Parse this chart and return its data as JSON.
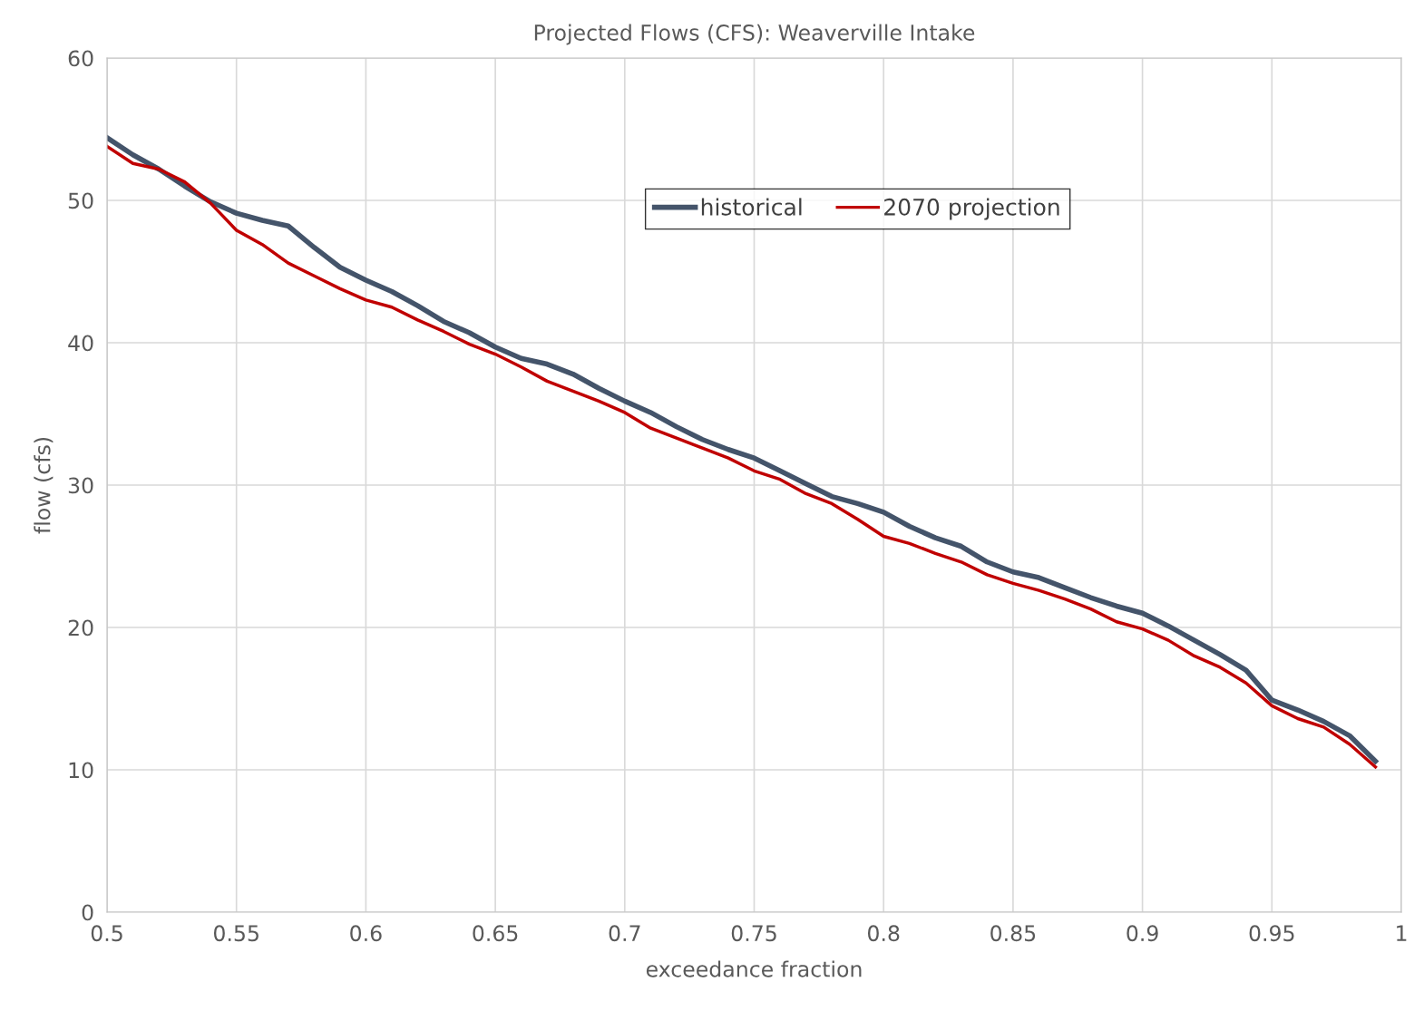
{
  "chart_data": {
    "type": "line",
    "title": "Projected Flows (CFS): Weaverville Intake",
    "xlabel": "exceedance fraction",
    "ylabel": "flow (cfs)",
    "x": [
      0.5,
      0.51,
      0.52,
      0.53,
      0.54,
      0.55,
      0.56,
      0.57,
      0.58,
      0.59,
      0.6,
      0.61,
      0.62,
      0.63,
      0.64,
      0.65,
      0.66,
      0.67,
      0.68,
      0.69,
      0.7,
      0.71,
      0.72,
      0.73,
      0.74,
      0.75,
      0.76,
      0.77,
      0.78,
      0.79,
      0.8,
      0.81,
      0.82,
      0.83,
      0.84,
      0.85,
      0.86,
      0.87,
      0.88,
      0.89,
      0.9,
      0.91,
      0.92,
      0.93,
      0.94,
      0.95,
      0.96,
      0.97,
      0.98,
      0.99
    ],
    "series": [
      {
        "name": "historical",
        "color": "#44546a",
        "values": [
          54.4,
          53.2,
          52.2,
          51.0,
          49.9,
          49.1,
          48.6,
          48.2,
          46.7,
          45.3,
          44.4,
          43.6,
          42.6,
          41.5,
          40.7,
          39.7,
          38.9,
          38.5,
          37.8,
          36.8,
          35.9,
          35.1,
          34.1,
          33.2,
          32.5,
          31.9,
          31.0,
          30.1,
          29.2,
          28.7,
          28.1,
          27.1,
          26.3,
          25.7,
          24.6,
          23.9,
          23.5,
          22.8,
          22.1,
          21.5,
          21.0,
          20.1,
          19.1,
          18.1,
          17.0,
          14.9,
          14.2,
          13.4,
          12.4,
          10.6
        ]
      },
      {
        "name": "2070 projection",
        "color": "#c00000",
        "values": [
          53.8,
          52.6,
          52.2,
          51.3,
          49.8,
          47.9,
          46.9,
          45.6,
          44.7,
          43.8,
          43.0,
          42.5,
          41.6,
          40.8,
          39.9,
          39.2,
          38.3,
          37.3,
          36.6,
          35.9,
          35.1,
          34.0,
          33.3,
          32.6,
          31.9,
          31.0,
          30.4,
          29.4,
          28.7,
          27.6,
          26.4,
          25.9,
          25.2,
          24.6,
          23.7,
          23.1,
          22.6,
          22.0,
          21.3,
          20.4,
          19.9,
          19.1,
          18.0,
          17.2,
          16.1,
          14.5,
          13.6,
          13.0,
          11.8,
          10.2
        ]
      }
    ],
    "xlim": [
      0.5,
      1
    ],
    "xticks": [
      0.5,
      0.55,
      0.6,
      0.65,
      0.7,
      0.75,
      0.8,
      0.85,
      0.9,
      0.95,
      1
    ],
    "ylim": [
      0,
      60
    ],
    "yticks": [
      0,
      10,
      20,
      30,
      40,
      50,
      60
    ],
    "grid": true,
    "legend": "top",
    "marker": "none",
    "line_style": "solid"
  }
}
